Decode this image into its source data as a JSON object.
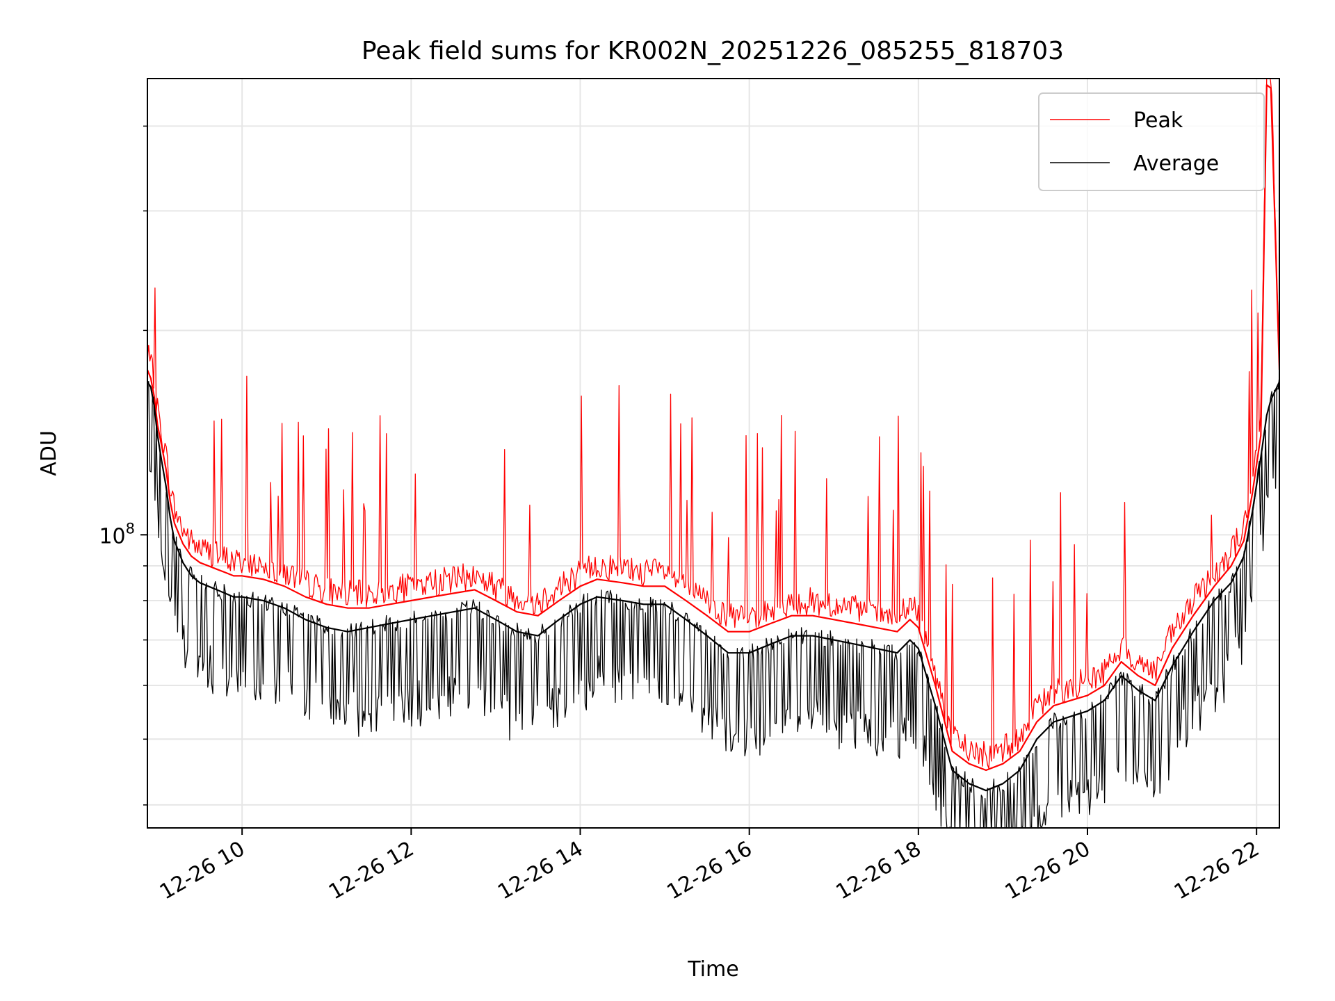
{
  "chart_data": {
    "type": "line",
    "title": "Peak field sums for KR002N_20251226_085255_818703",
    "xlabel": "Time",
    "ylabel": "ADU",
    "yscale": "log",
    "ylim": [
      37000000,
      470000000
    ],
    "xlim": [
      8.88,
      22.27
    ],
    "x_ticks": [
      {
        "x": 10,
        "label": "12-26 10"
      },
      {
        "x": 12,
        "label": "12-26 12"
      },
      {
        "x": 14,
        "label": "12-26 14"
      },
      {
        "x": 16,
        "label": "12-26 16"
      },
      {
        "x": 18,
        "label": "12-26 18"
      },
      {
        "x": 20,
        "label": "12-26 20"
      },
      {
        "x": 22,
        "label": "12-26 22"
      }
    ],
    "y_major_ticks": [
      {
        "y": 100000000,
        "label_base": "10",
        "label_exp": "8"
      }
    ],
    "y_minor_ticks": [
      40000000,
      50000000,
      60000000,
      70000000,
      80000000,
      90000000,
      200000000,
      300000000,
      400000000
    ],
    "grid": true,
    "legend": {
      "position": "top-right",
      "entries": [
        "Peak",
        "Average"
      ]
    },
    "series": [
      {
        "name": "Peak",
        "color": "#ff0000",
        "x": [
          8.88,
          8.92,
          8.96,
          9.0,
          9.05,
          9.1,
          9.15,
          9.2,
          9.3,
          9.4,
          9.5,
          9.6,
          9.7,
          9.8,
          9.9,
          10.0,
          10.25,
          10.5,
          10.75,
          11.0,
          11.25,
          11.5,
          11.75,
          12.0,
          12.25,
          12.5,
          12.75,
          13.0,
          13.25,
          13.5,
          13.75,
          14.0,
          14.2,
          14.5,
          14.75,
          15.0,
          15.25,
          15.5,
          15.75,
          16.0,
          16.25,
          16.5,
          16.75,
          17.0,
          17.25,
          17.5,
          17.75,
          17.9,
          18.0,
          18.2,
          18.4,
          18.6,
          18.8,
          19.0,
          19.2,
          19.4,
          19.6,
          19.8,
          20.0,
          20.2,
          20.4,
          20.6,
          20.8,
          21.0,
          21.25,
          21.5,
          21.7,
          21.85,
          21.95,
          22.05,
          22.12,
          22.17,
          22.27
        ],
        "y": [
          175000000,
          170000000,
          160000000,
          145000000,
          135000000,
          125000000,
          112000000,
          104000000,
          97000000,
          93000000,
          91000000,
          90000000,
          89000000,
          88000000,
          87000000,
          87000000,
          86000000,
          84000000,
          81000000,
          79000000,
          78000000,
          78000000,
          79000000,
          80000000,
          81000000,
          82000000,
          83000000,
          80000000,
          77000000,
          76000000,
          80000000,
          84000000,
          86000000,
          85000000,
          84000000,
          84000000,
          80000000,
          76000000,
          72000000,
          72000000,
          74000000,
          76000000,
          76000000,
          75000000,
          74000000,
          73000000,
          72000000,
          75000000,
          73000000,
          60000000,
          48000000,
          46000000,
          45000000,
          46000000,
          48000000,
          53000000,
          56000000,
          57000000,
          58000000,
          60000000,
          65000000,
          62000000,
          60000000,
          68000000,
          76000000,
          84000000,
          90000000,
          98000000,
          115000000,
          140000000,
          460000000,
          455000000,
          175000000
        ]
      },
      {
        "name": "Average",
        "color": "#000000",
        "x": [
          8.88,
          8.92,
          8.96,
          9.0,
          9.05,
          9.1,
          9.15,
          9.2,
          9.3,
          9.4,
          9.5,
          9.6,
          9.7,
          9.8,
          9.9,
          10.0,
          10.25,
          10.5,
          10.75,
          11.0,
          11.25,
          11.5,
          11.75,
          12.0,
          12.25,
          12.5,
          12.75,
          13.0,
          13.25,
          13.5,
          13.75,
          14.0,
          14.2,
          14.5,
          14.75,
          15.0,
          15.25,
          15.5,
          15.75,
          16.0,
          16.25,
          16.5,
          16.75,
          17.0,
          17.25,
          17.5,
          17.75,
          17.9,
          18.0,
          18.2,
          18.4,
          18.6,
          18.8,
          19.0,
          19.2,
          19.4,
          19.6,
          19.8,
          20.0,
          20.2,
          20.4,
          20.6,
          20.8,
          21.0,
          21.25,
          21.5,
          21.7,
          21.85,
          21.95,
          22.05,
          22.12,
          22.17,
          22.27
        ],
        "y": [
          168000000,
          165000000,
          155000000,
          140000000,
          128000000,
          118000000,
          106000000,
          98000000,
          91000000,
          87000000,
          85000000,
          84000000,
          83000000,
          82000000,
          81000000,
          81000000,
          80000000,
          78000000,
          75000000,
          73000000,
          72000000,
          73000000,
          74000000,
          75000000,
          76000000,
          77000000,
          78000000,
          75000000,
          72000000,
          71000000,
          75000000,
          79000000,
          81000000,
          80000000,
          79000000,
          79000000,
          75000000,
          71000000,
          67000000,
          67000000,
          69000000,
          71000000,
          71000000,
          70000000,
          69000000,
          68000000,
          67000000,
          70000000,
          68000000,
          56000000,
          45000000,
          43000000,
          42000000,
          43000000,
          45000000,
          50000000,
          53000000,
          54000000,
          55000000,
          57000000,
          62000000,
          59000000,
          57000000,
          64000000,
          72000000,
          80000000,
          85000000,
          93000000,
          108000000,
          130000000,
          150000000,
          158000000,
          168000000
        ]
      }
    ]
  }
}
